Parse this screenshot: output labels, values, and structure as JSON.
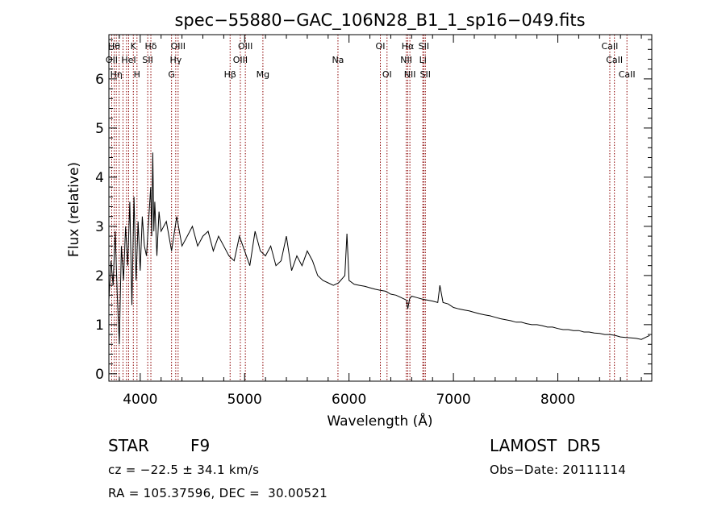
{
  "chart_data": {
    "type": "line",
    "title": "spec−55880−GAC_106N28_B1_1_sp16−049.fits",
    "xlabel": "Wavelength (Å)",
    "ylabel": "Flux (relative)",
    "xlim": [
      3700,
      8900
    ],
    "ylim": [
      -0.15,
      6.9
    ],
    "x_ticks": [
      4000,
      5000,
      6000,
      7000,
      8000
    ],
    "x_tick_labels": [
      "4000",
      "5000",
      "6000",
      "7000",
      "8000"
    ],
    "y_ticks": [
      0,
      1,
      2,
      3,
      4,
      5,
      6
    ],
    "y_tick_labels": [
      "0",
      "1",
      "2",
      "3",
      "4",
      "5",
      "6"
    ],
    "series": [
      {
        "color": "#000000",
        "x": [
          3700,
          3720,
          3740,
          3760,
          3780,
          3800,
          3820,
          3840,
          3860,
          3880,
          3900,
          3920,
          3940,
          3960,
          3980,
          4000,
          4020,
          4040,
          4060,
          4080,
          4100,
          4110,
          4120,
          4130,
          4140,
          4160,
          4180,
          4200,
          4250,
          4300,
          4350,
          4400,
          4450,
          4500,
          4550,
          4600,
          4650,
          4700,
          4750,
          4800,
          4850,
          4900,
          4950,
          5000,
          5050,
          5100,
          5150,
          5200,
          5250,
          5300,
          5350,
          5400,
          5450,
          5500,
          5550,
          5600,
          5650,
          5700,
          5750,
          5800,
          5850,
          5900,
          5920,
          5940,
          5960,
          5980,
          6000,
          6050,
          6100,
          6150,
          6200,
          6250,
          6300,
          6350,
          6400,
          6450,
          6500,
          6550,
          6563,
          6580,
          6600,
          6650,
          6700,
          6750,
          6800,
          6850,
          6870,
          6900,
          6950,
          7000,
          7050,
          7100,
          7150,
          7200,
          7250,
          7300,
          7350,
          7400,
          7450,
          7500,
          7550,
          7600,
          7650,
          7700,
          7750,
          7800,
          7850,
          7900,
          7950,
          8000,
          8050,
          8100,
          8150,
          8200,
          8250,
          8300,
          8350,
          8400,
          8450,
          8500,
          8550,
          8600,
          8650,
          8700,
          8750,
          8800,
          8850,
          8880
        ],
        "y": [
          1.5,
          2.3,
          1.8,
          2.9,
          1.6,
          0.6,
          2.6,
          1.9,
          3.0,
          2.2,
          3.5,
          1.4,
          3.6,
          1.9,
          3.1,
          2.1,
          3.2,
          2.6,
          2.4,
          3.1,
          3.8,
          2.8,
          4.5,
          2.9,
          3.5,
          2.4,
          3.3,
          2.9,
          3.1,
          2.5,
          3.2,
          2.6,
          2.8,
          3.0,
          2.6,
          2.8,
          2.9,
          2.5,
          2.8,
          2.6,
          2.4,
          2.3,
          2.8,
          2.5,
          2.2,
          2.9,
          2.5,
          2.4,
          2.6,
          2.2,
          2.3,
          2.8,
          2.1,
          2.4,
          2.2,
          2.5,
          2.3,
          2.0,
          1.9,
          1.85,
          1.8,
          1.85,
          1.9,
          1.95,
          2.0,
          2.85,
          1.9,
          1.82,
          1.8,
          1.78,
          1.75,
          1.72,
          1.7,
          1.68,
          1.62,
          1.6,
          1.55,
          1.5,
          1.32,
          1.52,
          1.58,
          1.55,
          1.52,
          1.5,
          1.48,
          1.45,
          1.8,
          1.45,
          1.42,
          1.35,
          1.32,
          1.3,
          1.28,
          1.25,
          1.22,
          1.2,
          1.18,
          1.15,
          1.12,
          1.1,
          1.08,
          1.05,
          1.05,
          1.02,
          1.0,
          1.0,
          0.98,
          0.95,
          0.95,
          0.92,
          0.9,
          0.9,
          0.88,
          0.88,
          0.85,
          0.85,
          0.83,
          0.82,
          0.8,
          0.8,
          0.78,
          0.75,
          0.74,
          0.73,
          0.72,
          0.7,
          0.75,
          0.78
        ]
      }
    ],
    "line_markers": [
      {
        "x": 3727,
        "label": "OII",
        "row": 1
      },
      {
        "x": 3750,
        "label": "Hθ",
        "row": 0
      },
      {
        "x": 3771,
        "label": "Hη",
        "row": 2
      },
      {
        "x": 3798,
        "label": "",
        "row": -1
      },
      {
        "x": 3835,
        "label": "",
        "row": -1
      },
      {
        "x": 3869,
        "label": "",
        "row": -1
      },
      {
        "x": 3889,
        "label": "HeI",
        "row": 1
      },
      {
        "x": 3934,
        "label": "K",
        "row": 0
      },
      {
        "x": 3969,
        "label": "H",
        "row": 2
      },
      {
        "x": 4102,
        "label": "Hδ",
        "row": 0
      },
      {
        "x": 4072,
        "label": "SII",
        "row": 1
      },
      {
        "x": 4300,
        "label": "G",
        "row": 2
      },
      {
        "x": 4340,
        "label": "Hγ",
        "row": 1
      },
      {
        "x": 4363,
        "label": "OIII",
        "row": 0
      },
      {
        "x": 4861,
        "label": "Hβ",
        "row": 2
      },
      {
        "x": 4959,
        "label": "OIII",
        "row": 1
      },
      {
        "x": 5007,
        "label": "OIII",
        "row": 0
      },
      {
        "x": 5175,
        "label": "Mg",
        "row": 2
      },
      {
        "x": 5894,
        "label": "Na",
        "row": 1
      },
      {
        "x": 6300,
        "label": "OI",
        "row": 0
      },
      {
        "x": 6364,
        "label": "OI",
        "row": 2
      },
      {
        "x": 6548,
        "label": "NII",
        "row": 1
      },
      {
        "x": 6563,
        "label": "Hα",
        "row": 0
      },
      {
        "x": 6583,
        "label": "NII",
        "row": 2
      },
      {
        "x": 6707,
        "label": "Li",
        "row": 1
      },
      {
        "x": 6716,
        "label": "SII",
        "row": 0
      },
      {
        "x": 6731,
        "label": "SII",
        "row": 2
      },
      {
        "x": 8498,
        "label": "CaII",
        "row": 0
      },
      {
        "x": 8542,
        "label": "CaII",
        "row": 1
      },
      {
        "x": 8662,
        "label": "CaII",
        "row": 2
      }
    ],
    "marker_color": "#8b0000"
  },
  "info": {
    "class_label": "STAR",
    "subclass": "F9",
    "survey": "LAMOST  DR5",
    "cz": "cz = −22.5 ± 34.1 km/s",
    "obs_date": "Obs−Date: 20111114",
    "radec": "RA = 105.37596, DEC =  30.00521"
  }
}
